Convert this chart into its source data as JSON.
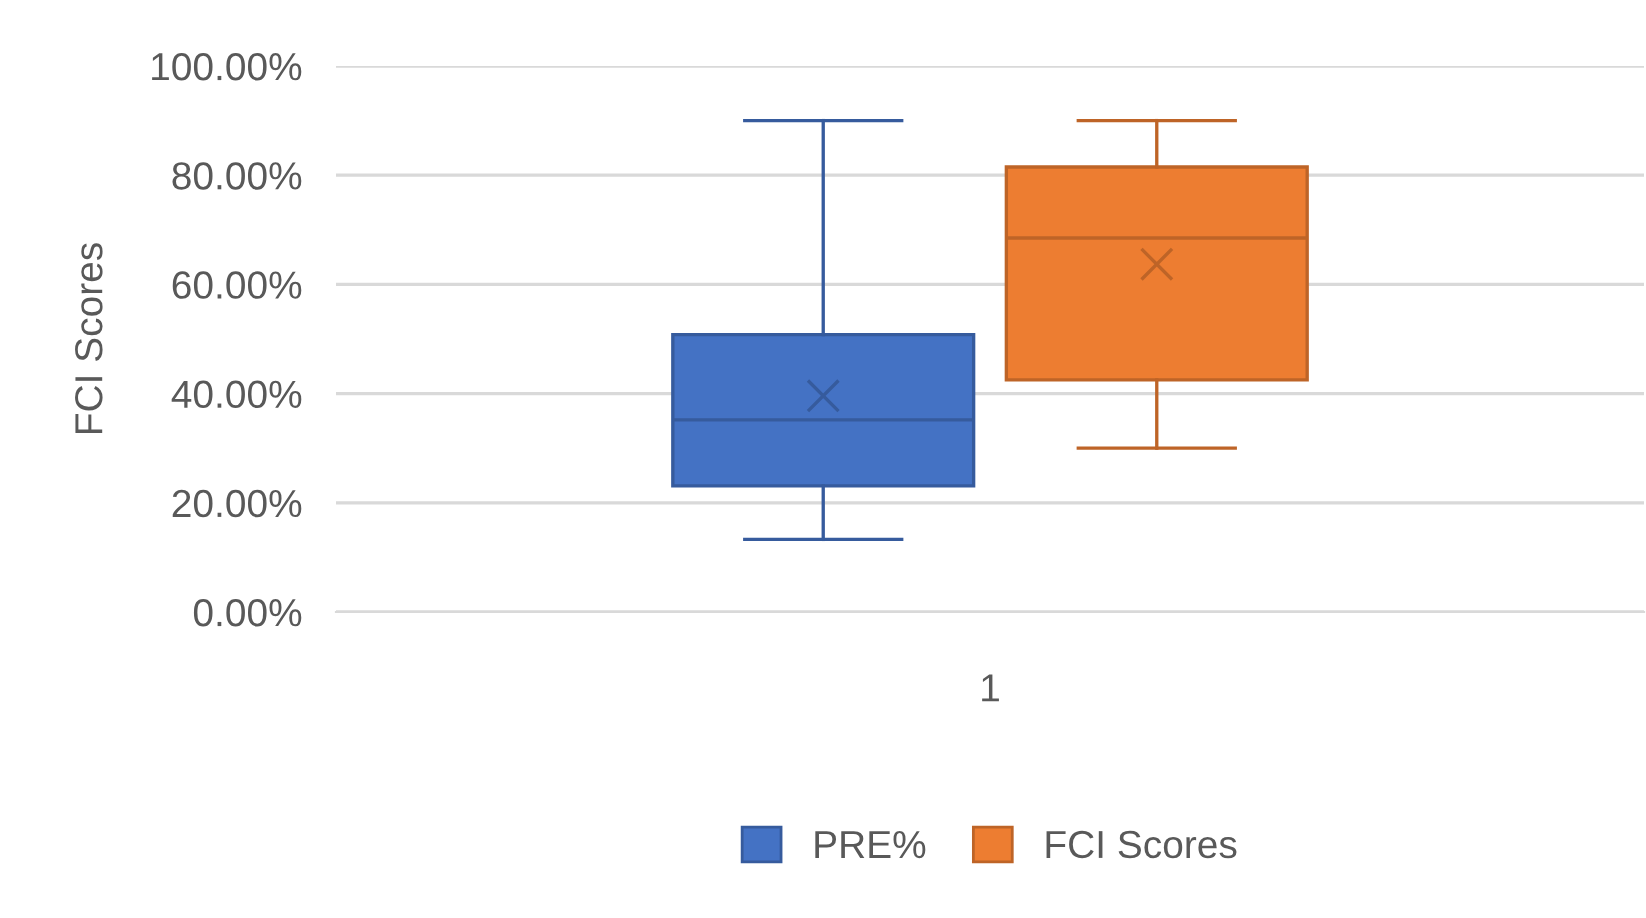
{
  "chart_data": {
    "type": "box",
    "ylabel": "FCI Scores",
    "categories": [
      "1"
    ],
    "series": [
      {
        "name": "PRE%",
        "color": "#4472c4",
        "boxes": [
          {
            "low": 13.3,
            "q1": 23.1,
            "median": 35.2,
            "q3": 50.8,
            "high": 90,
            "mean": 39.6
          }
        ]
      },
      {
        "name": "FCI Scores",
        "color": "#ed7d31",
        "boxes": [
          {
            "low": 30,
            "q1": 42.5,
            "median": 68.5,
            "q3": 81.5,
            "high": 90,
            "mean": 63.7
          }
        ]
      }
    ],
    "ylim": [
      0,
      100
    ],
    "yticks": [
      {
        "value": 0,
        "label": "0.00%"
      },
      {
        "value": 20,
        "label": "20.00%"
      },
      {
        "value": 40,
        "label": "40.00%"
      },
      {
        "value": 60,
        "label": "60.00%"
      },
      {
        "value": 80,
        "label": "80.00%"
      },
      {
        "value": 100,
        "label": "100.00%"
      }
    ],
    "grid": "y",
    "legend": "bottom",
    "marker": "cross"
  }
}
